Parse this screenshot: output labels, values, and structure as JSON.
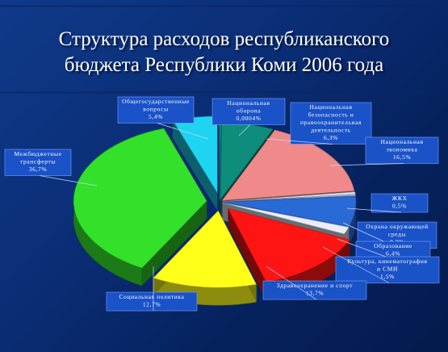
{
  "slide": {
    "title_line1": "Структура расходов республиканского",
    "title_line2": "бюджета Республики Коми 2006 года"
  },
  "chart_data": {
    "type": "pie",
    "title": "Структура расходов республиканского бюджета Республики Коми 2006 года",
    "slices": [
      {
        "name": "Общегосударственные вопросы",
        "value_label": "5,4%",
        "value": 5.4,
        "color": "#1fd4f0",
        "exploded": true
      },
      {
        "name": "Национальная оборона",
        "value_label": "0,0004%",
        "value": 0.0004,
        "color": "#009a9a",
        "exploded": false
      },
      {
        "name": "Национальная безопасность и правоохранительная деятельность",
        "value_label": "6,3%",
        "value": 6.3,
        "color": "#0e8c7c",
        "exploded": false
      },
      {
        "name": "Национальная экономика",
        "value_label": "16,5%",
        "value": 16.5,
        "color": "#f08a8a",
        "exploded": false
      },
      {
        "name": "ЖКХ",
        "value_label": "0,5%",
        "value": 0.5,
        "color": "#dbe4f2",
        "exploded": false
      },
      {
        "name": "Охрана окружающей среды",
        "value_label": "0,3%",
        "value": 0.3,
        "color": "#a9b9dc",
        "exploded": false
      },
      {
        "name": "Образование",
        "value_label": "6,4%",
        "value": 6.4,
        "color": "#2a6ad6",
        "exploded": false
      },
      {
        "name": "Культура, кинематография и СМИ",
        "value_label": "1,5%",
        "value": 1.5,
        "color": "#e8edf8",
        "exploded": false
      },
      {
        "name": "Здравоохранение и спорт",
        "value_label": "13,7%",
        "value": 13.7,
        "color": "#ff1414",
        "exploded": true
      },
      {
        "name": "Социальная политика",
        "value_label": "12,7%",
        "value": 12.7,
        "color": "#ffff1a",
        "exploded": true
      },
      {
        "name": "Межбюджетные трансферты",
        "value_label": "36,7%",
        "value": 36.7,
        "color": "#33e02a",
        "exploded": true
      }
    ]
  }
}
